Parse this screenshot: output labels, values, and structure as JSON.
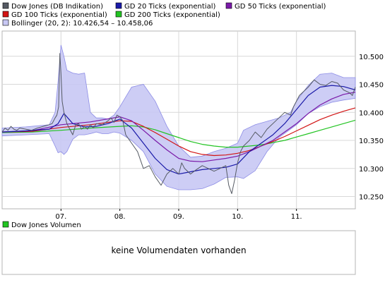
{
  "colors": {
    "dow": "#555a63",
    "gd20": "#1a1aa8",
    "gd50": "#7a1aa8",
    "gd100": "#d21414",
    "gd200": "#22c422",
    "bollinger_fill": "#c8c8f4",
    "bollinger_stroke": "#8c8ce6",
    "grid": "#d8d8d8",
    "frame": "#b4b4b4"
  },
  "legend": [
    {
      "key": "dow",
      "label": "Dow Jones (DB Indikation)"
    },
    {
      "key": "gd20",
      "label": "GD 20 Ticks (exponential)"
    },
    {
      "key": "gd50",
      "label": "GD 50 Ticks (exponential)"
    },
    {
      "key": "gd100",
      "label": "GD 100 Ticks (exponential)"
    },
    {
      "key": "gd200",
      "label": "GD 200 Ticks (exponential)"
    },
    {
      "key": "bollinger",
      "label": "Bollinger (20, 2): 10.426,54 – 10.458,06"
    }
  ],
  "volume": {
    "legend_label": "Dow Jones Volumen",
    "message": "keine Volumendaten vorhanden"
  },
  "chart_data": {
    "type": "line",
    "x_tick_labels": [
      "07.",
      "08.",
      "09.",
      "10.",
      "11."
    ],
    "x_tick_positions": [
      1,
      2,
      3,
      4,
      5
    ],
    "x_range": [
      0.0,
      6.0
    ],
    "y_tick_labels": [
      "10.250",
      "10.300",
      "10.350",
      "10.400",
      "10.450",
      "10.500"
    ],
    "y_tick_values": [
      10250,
      10300,
      10350,
      10400,
      10450,
      10500
    ],
    "ylim": [
      10228,
      10545
    ],
    "grid": true,
    "legend_position": "top",
    "bollinger_band": {
      "x": [
        0.0,
        0.4,
        0.8,
        0.9,
        0.95,
        1.0,
        1.05,
        1.1,
        1.2,
        1.3,
        1.4,
        1.5,
        1.6,
        1.7,
        1.8,
        1.9,
        2.0,
        2.2,
        2.4,
        2.6,
        2.8,
        3.0,
        3.2,
        3.4,
        3.6,
        3.8,
        4.0,
        4.1,
        4.3,
        4.5,
        4.7,
        4.9,
        5.0,
        5.2,
        5.4,
        5.6,
        5.8,
        6.0
      ],
      "upper": [
        10372,
        10374,
        10378,
        10400,
        10455,
        10520,
        10500,
        10475,
        10470,
        10468,
        10470,
        10400,
        10390,
        10390,
        10388,
        10395,
        10410,
        10445,
        10450,
        10420,
        10375,
        10340,
        10320,
        10322,
        10330,
        10336,
        10345,
        10368,
        10378,
        10384,
        10390,
        10400,
        10420,
        10448,
        10468,
        10470,
        10462,
        10462
      ],
      "lower": [
        10358,
        10360,
        10362,
        10340,
        10328,
        10330,
        10325,
        10330,
        10352,
        10360,
        10360,
        10362,
        10365,
        10362,
        10362,
        10365,
        10363,
        10350,
        10330,
        10290,
        10268,
        10262,
        10262,
        10264,
        10272,
        10284,
        10285,
        10282,
        10296,
        10330,
        10355,
        10370,
        10378,
        10398,
        10410,
        10418,
        10422,
        10425
      ]
    },
    "series": [
      {
        "key": "dow",
        "name": "Dow Jones (DB Indikation)",
        "x": [
          0.0,
          0.05,
          0.1,
          0.15,
          0.2,
          0.25,
          0.3,
          0.4,
          0.5,
          0.6,
          0.7,
          0.8,
          0.85,
          0.9,
          0.93,
          0.96,
          0.98,
          1.0,
          1.02,
          1.05,
          1.1,
          1.15,
          1.2,
          1.25,
          1.3,
          1.35,
          1.4,
          1.45,
          1.5,
          1.55,
          1.6,
          1.7,
          1.8,
          1.85,
          1.9,
          1.95,
          2.0,
          2.05,
          2.1,
          2.2,
          2.3,
          2.4,
          2.5,
          2.6,
          2.7,
          2.8,
          2.9,
          2.95,
          3.0,
          3.05,
          3.1,
          3.2,
          3.3,
          3.4,
          3.5,
          3.6,
          3.7,
          3.8,
          3.85,
          3.9,
          3.95,
          4.0,
          4.05,
          4.1,
          4.2,
          4.3,
          4.4,
          4.5,
          4.6,
          4.7,
          4.8,
          4.9,
          4.95,
          5.0,
          5.05,
          5.1,
          5.2,
          5.3,
          5.4,
          5.5,
          5.6,
          5.7,
          5.8,
          5.9,
          5.95,
          6.0
        ],
        "y": [
          10365,
          10372,
          10368,
          10375,
          10370,
          10368,
          10372,
          10370,
          10368,
          10372,
          10375,
          10378,
          10380,
          10390,
          10395,
          10410,
          10505,
          10470,
          10420,
          10400,
          10380,
          10370,
          10360,
          10378,
          10380,
          10370,
          10375,
          10370,
          10378,
          10372,
          10380,
          10378,
          10385,
          10390,
          10382,
          10395,
          10392,
          10385,
          10360,
          10345,
          10330,
          10300,
          10305,
          10285,
          10270,
          10290,
          10300,
          10295,
          10290,
          10310,
          10300,
          10290,
          10298,
          10305,
          10300,
          10295,
          10300,
          10305,
          10270,
          10255,
          10280,
          10310,
          10330,
          10340,
          10350,
          10365,
          10355,
          10370,
          10380,
          10390,
          10400,
          10395,
          10410,
          10420,
          10430,
          10435,
          10445,
          10458,
          10450,
          10448,
          10455,
          10452,
          10440,
          10435,
          10430,
          10445
        ]
      },
      {
        "key": "gd20",
        "name": "GD 20 Ticks (exponential)",
        "x": [
          0.0,
          0.4,
          0.8,
          0.95,
          1.05,
          1.2,
          1.4,
          1.6,
          1.8,
          2.0,
          2.2,
          2.4,
          2.6,
          2.8,
          3.0,
          3.2,
          3.4,
          3.6,
          3.8,
          4.0,
          4.2,
          4.4,
          4.6,
          4.8,
          5.0,
          5.2,
          5.4,
          5.6,
          5.8,
          6.0
        ],
        "y": [
          10365,
          10367,
          10370,
          10380,
          10398,
          10380,
          10374,
          10375,
          10380,
          10388,
          10372,
          10345,
          10318,
          10298,
          10290,
          10294,
          10298,
          10300,
          10302,
          10308,
          10330,
          10345,
          10360,
          10380,
          10405,
          10430,
          10445,
          10448,
          10446,
          10440
        ]
      },
      {
        "key": "gd50",
        "name": "GD 50 Ticks (exponential)",
        "x": [
          0.0,
          0.5,
          1.0,
          1.5,
          2.0,
          2.2,
          2.4,
          2.6,
          2.8,
          3.0,
          3.2,
          3.4,
          3.6,
          3.8,
          4.0,
          4.2,
          4.4,
          4.6,
          4.8,
          5.0,
          5.2,
          5.4,
          5.6,
          5.8,
          6.0
        ],
        "y": [
          10365,
          10367,
          10378,
          10383,
          10392,
          10385,
          10368,
          10350,
          10333,
          10318,
          10313,
          10312,
          10315,
          10318,
          10322,
          10330,
          10340,
          10350,
          10365,
          10380,
          10398,
          10413,
          10424,
          10432,
          10436
        ]
      },
      {
        "key": "gd100",
        "name": "GD 100 Ticks (exponential)",
        "x": [
          0.0,
          0.5,
          1.0,
          1.5,
          2.0,
          2.2,
          2.4,
          2.6,
          2.8,
          3.0,
          3.2,
          3.4,
          3.6,
          3.8,
          4.0,
          4.2,
          4.4,
          4.6,
          4.8,
          5.0,
          5.2,
          5.4,
          5.6,
          5.8,
          6.0
        ],
        "y": [
          10365,
          10366,
          10373,
          10378,
          10385,
          10384,
          10375,
          10364,
          10352,
          10340,
          10330,
          10325,
          10323,
          10324,
          10327,
          10332,
          10340,
          10348,
          10357,
          10367,
          10377,
          10387,
          10395,
          10402,
          10408
        ]
      },
      {
        "key": "gd200",
        "name": "GD 200 Ticks (exponential)",
        "x": [
          0.0,
          0.5,
          1.0,
          1.5,
          2.0,
          2.2,
          2.4,
          2.6,
          2.8,
          3.0,
          3.2,
          3.4,
          3.6,
          3.8,
          4.0,
          4.2,
          4.4,
          4.6,
          4.8,
          5.0,
          5.2,
          5.4,
          5.6,
          5.8,
          6.0
        ],
        "y": [
          10364,
          10365,
          10368,
          10372,
          10375,
          10376,
          10374,
          10369,
          10362,
          10355,
          10348,
          10343,
          10340,
          10338,
          10338,
          10340,
          10342,
          10346,
          10350,
          10356,
          10362,
          10368,
          10374,
          10380,
          10386
        ]
      }
    ]
  }
}
